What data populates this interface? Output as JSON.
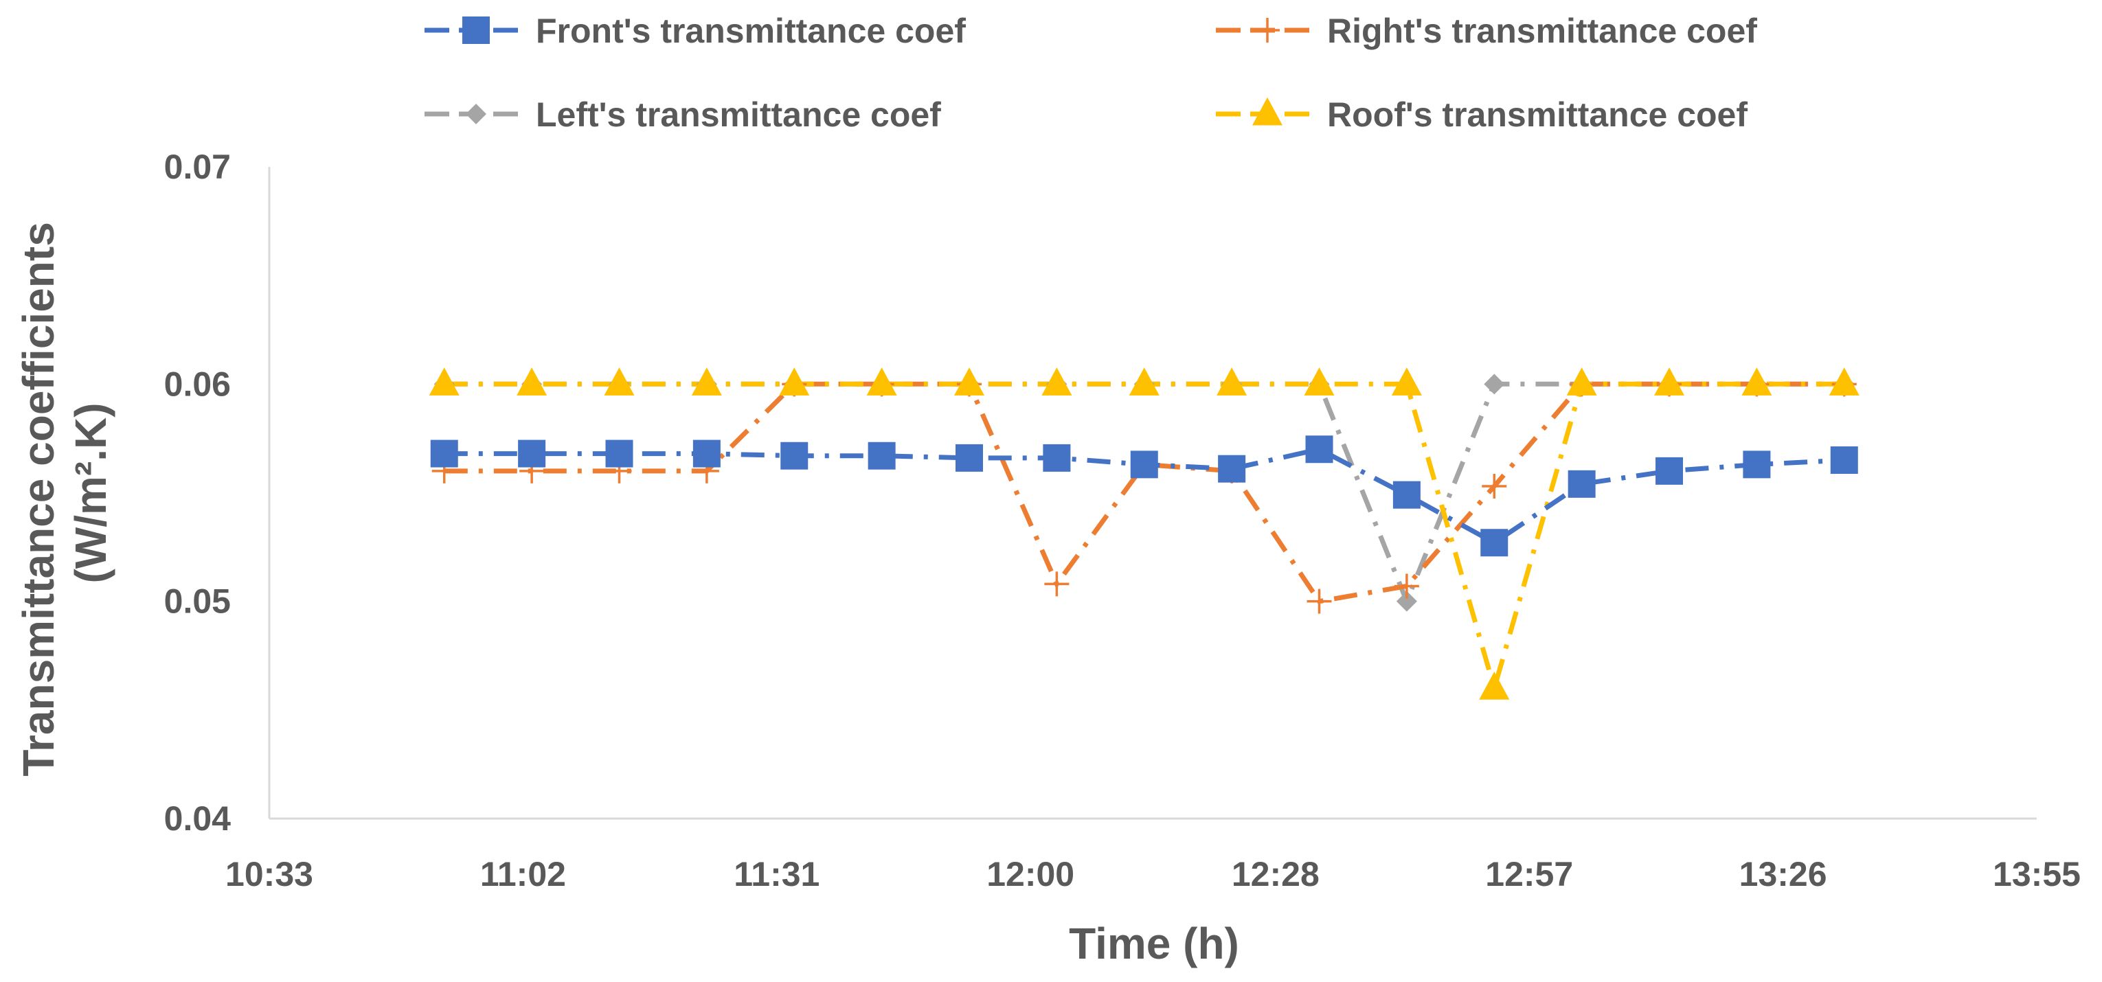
{
  "chart_data": {
    "type": "line",
    "title": "",
    "xlabel": "Time (h)",
    "ylabel": [
      "Transmittance coefficients",
      "(W/m².K)"
    ],
    "xlim": [
      "10:33",
      "13:55"
    ],
    "ylim": [
      0.04,
      0.07
    ],
    "x_ticks": [
      "10:33",
      "11:02",
      "11:31",
      "12:00",
      "12:28",
      "12:57",
      "13:26",
      "13:55"
    ],
    "y_ticks": [
      "0.04",
      "0.05",
      "0.06",
      "0.07"
    ],
    "grid": false,
    "legend_position": "top",
    "x": [
      "10:53",
      "11:03",
      "11:13",
      "11:23",
      "11:33",
      "11:43",
      "11:53",
      "12:03",
      "12:13",
      "12:23",
      "12:33",
      "12:43",
      "12:53",
      "13:03",
      "13:13",
      "13:23",
      "13:33"
    ],
    "series": [
      {
        "name": "Front's transmittance coef",
        "color": "#4472C4",
        "marker": "square",
        "dash": "long-dash-dot",
        "values": [
          0.0568,
          0.0568,
          0.0568,
          0.0568,
          0.0567,
          0.0567,
          0.0566,
          0.0566,
          0.0563,
          0.0561,
          0.057,
          0.0549,
          0.0527,
          0.0554,
          0.056,
          0.0563,
          0.0565
        ]
      },
      {
        "name": "Right's transmittance coef",
        "color": "#ED7D31",
        "marker": "plus",
        "dash": "long-dash-dot",
        "values": [
          0.056,
          0.056,
          0.056,
          0.056,
          0.06,
          0.06,
          0.06,
          0.0508,
          0.0563,
          0.056,
          0.05,
          0.0507,
          0.0553,
          0.06,
          0.06,
          0.06,
          0.06
        ]
      },
      {
        "name": "Left's transmittance coef",
        "color": "#A5A5A5",
        "marker": "diamond",
        "dash": "long-dash-dot",
        "values": [
          0.06,
          0.06,
          0.06,
          0.06,
          0.06,
          0.06,
          0.06,
          0.06,
          0.06,
          0.06,
          0.06,
          0.05,
          0.06,
          0.06,
          0.06,
          0.06,
          0.06
        ]
      },
      {
        "name": "Roof's transmittance coef",
        "color": "#FFC000",
        "marker": "triangle",
        "dash": "long-dash-dot",
        "values": [
          0.06,
          0.06,
          0.06,
          0.06,
          0.06,
          0.06,
          0.06,
          0.06,
          0.06,
          0.06,
          0.06,
          0.06,
          0.046,
          0.06,
          0.06,
          0.06,
          0.06
        ]
      }
    ]
  }
}
